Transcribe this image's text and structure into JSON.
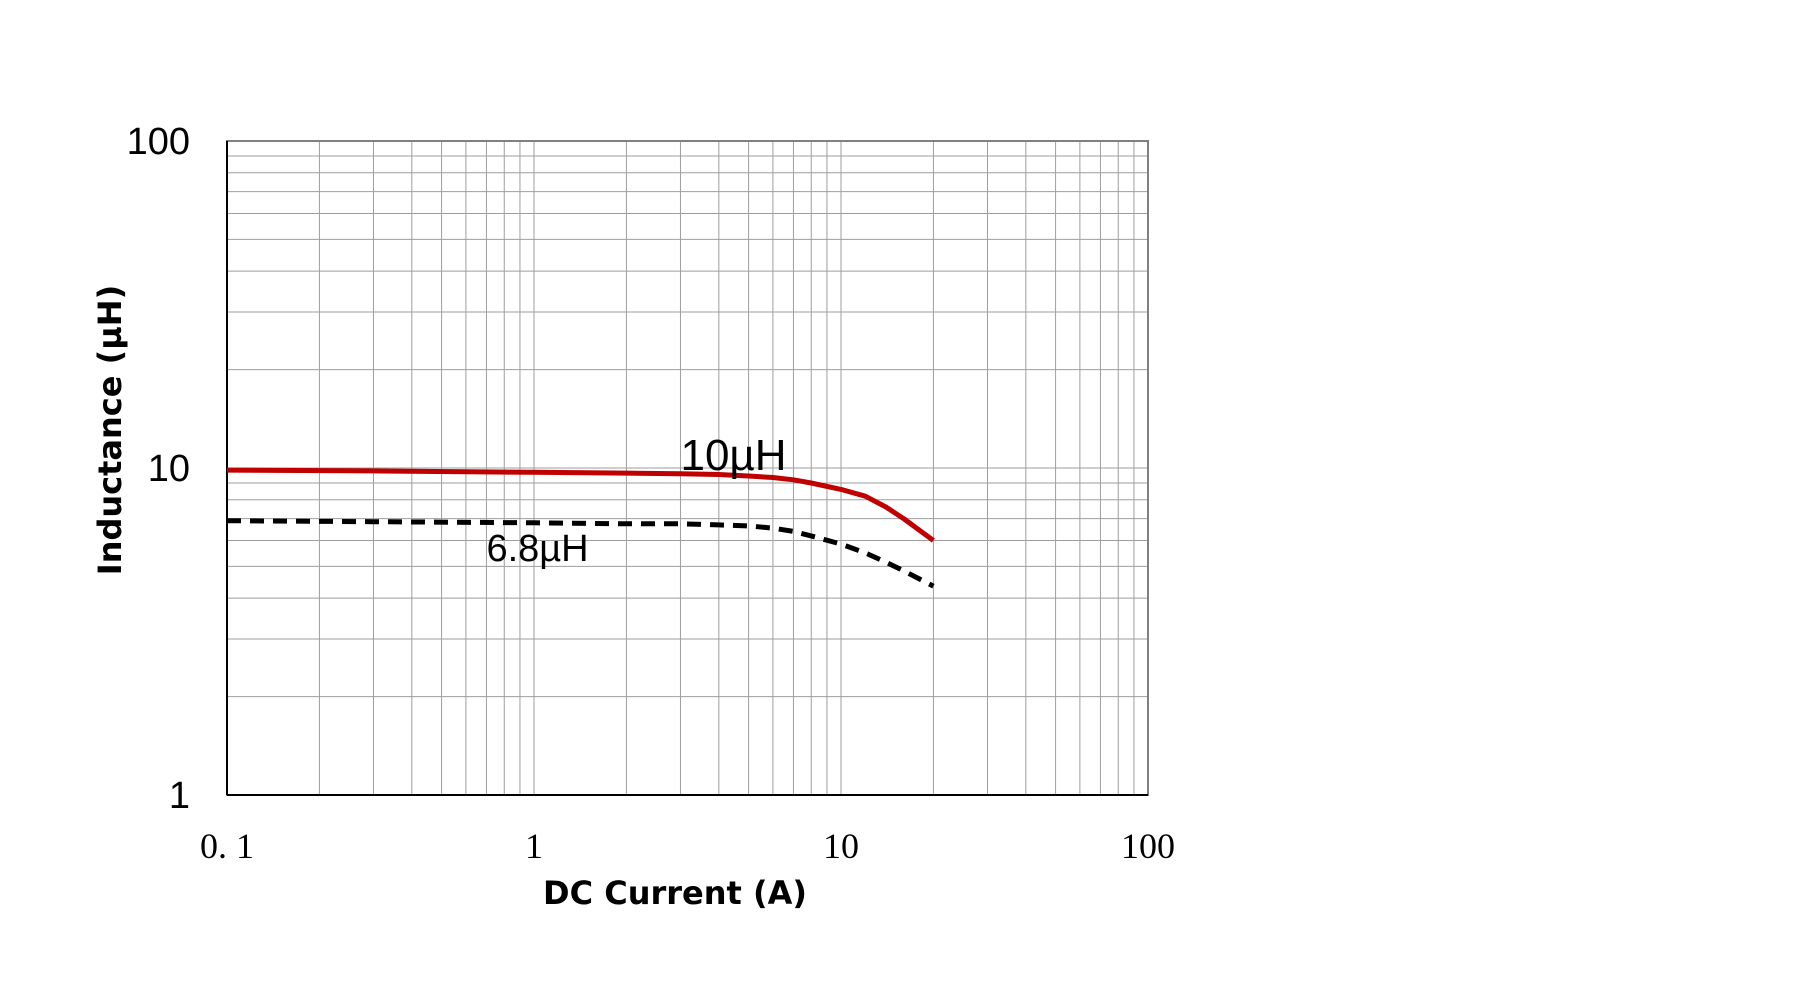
{
  "chart_data": {
    "type": "line",
    "xlabel": "DC Current (A)",
    "ylabel": "Inductance (µH)",
    "x_scale": "log",
    "y_scale": "log",
    "xlim": [
      0.1,
      100
    ],
    "ylim": [
      1,
      100
    ],
    "x_ticks": [
      "0. 1",
      "1",
      "10",
      "100"
    ],
    "y_ticks": [
      "1",
      "10",
      "100"
    ],
    "grid": true,
    "series": [
      {
        "name": "10µH",
        "color": "#c00000",
        "style": "solid",
        "x": [
          0.1,
          0.3,
          1,
          2,
          3,
          4,
          5,
          6,
          7,
          8,
          10,
          12,
          14,
          16,
          20
        ],
        "y": [
          9.85,
          9.8,
          9.7,
          9.65,
          9.6,
          9.55,
          9.45,
          9.35,
          9.2,
          9.0,
          8.6,
          8.2,
          7.6,
          7.0,
          6.0
        ]
      },
      {
        "name": "6.8µH",
        "color": "#000000",
        "style": "dashed",
        "x": [
          0.1,
          0.3,
          1,
          2,
          3,
          4,
          5,
          6,
          7,
          8,
          10,
          12,
          14,
          16,
          20
        ],
        "y": [
          6.9,
          6.85,
          6.8,
          6.75,
          6.75,
          6.7,
          6.65,
          6.55,
          6.4,
          6.2,
          5.85,
          5.5,
          5.15,
          4.85,
          4.35
        ]
      }
    ]
  }
}
